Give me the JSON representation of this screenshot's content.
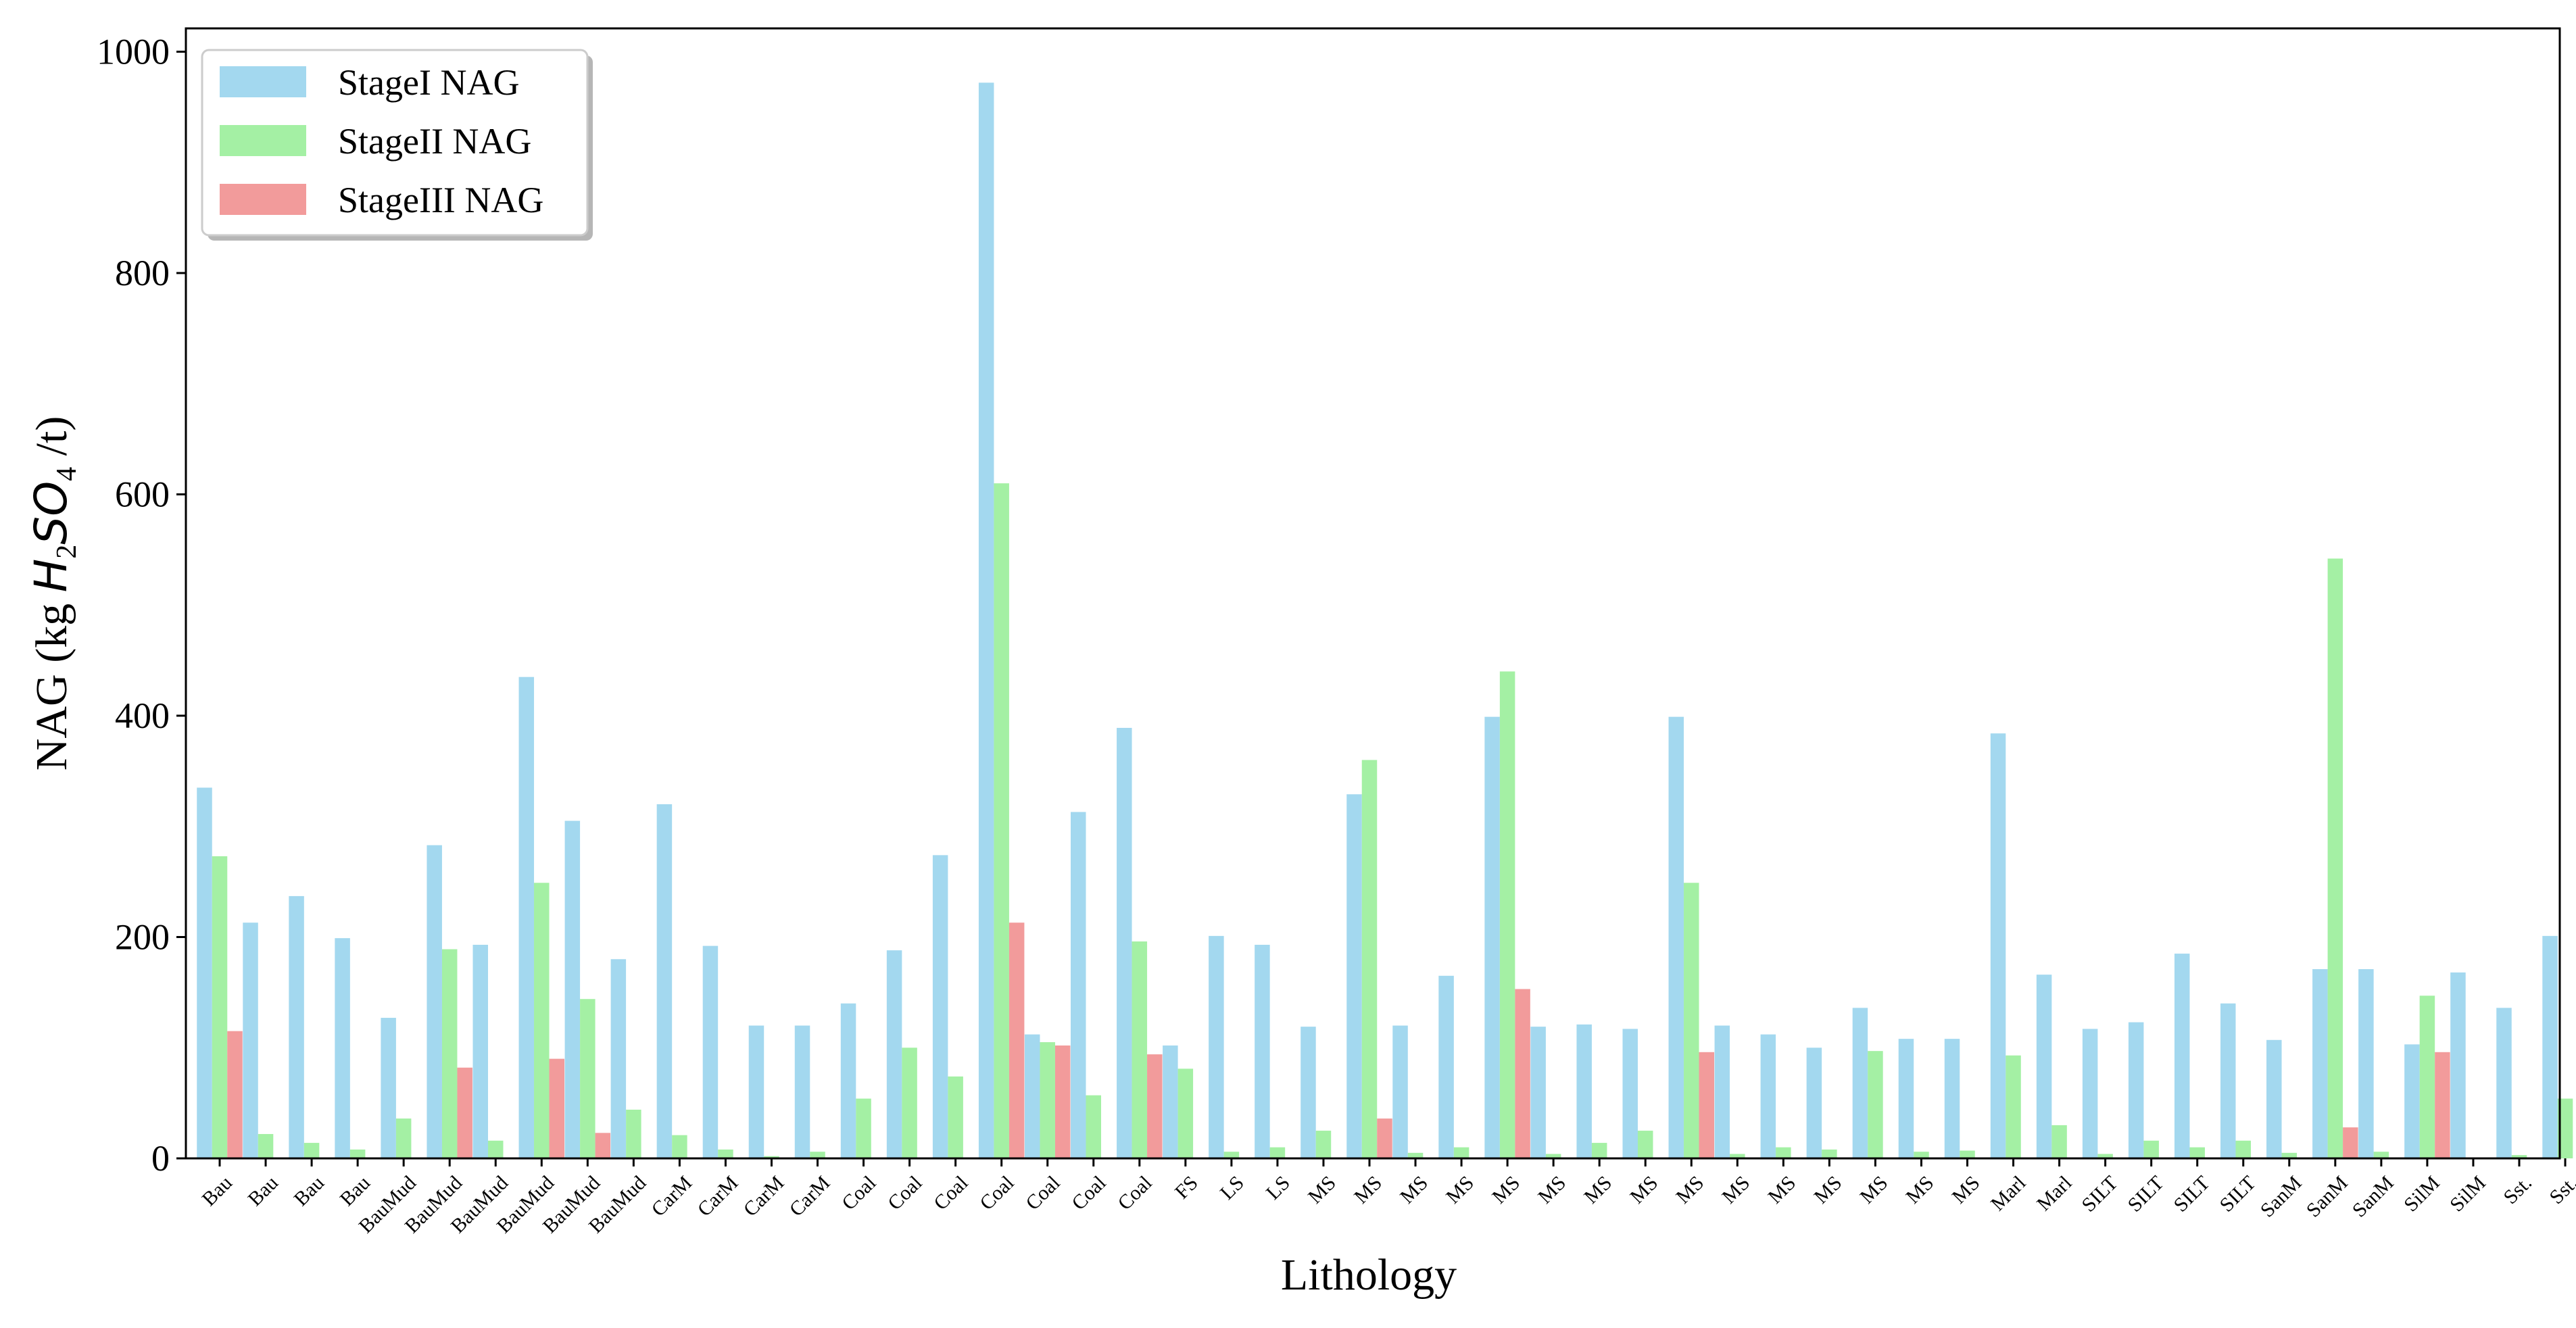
{
  "chart_data": {
    "type": "bar",
    "title": "",
    "xlabel": "Lithology",
    "ylabel": "NAG (kg H₂SO₄ /t)",
    "ylabel_parts": {
      "prefix": "NAG (kg ",
      "h": "H",
      "sub2": "2",
      "so": "SO",
      "sub4": "4",
      "suffix": " /t)"
    },
    "ylim": [
      0,
      1020
    ],
    "yticks": [
      0,
      200,
      400,
      600,
      800,
      1000
    ],
    "grid": false,
    "legend_position": "top-left",
    "categories": [
      "Bau",
      "Bau",
      "Bau",
      "Bau",
      "BauMud",
      "BauMud",
      "BauMud",
      "BauMud",
      "BauMud",
      "BauMud",
      "CarM",
      "CarM",
      "CarM",
      "CarM",
      "Coal",
      "Coal",
      "Coal",
      "Coal",
      "Coal",
      "Coal",
      "Coal",
      "FS",
      "LS",
      "LS",
      "MS",
      "MS",
      "MS",
      "MS",
      "MS",
      "MS",
      "MS",
      "MS",
      "MS",
      "MS",
      "MS",
      "MS",
      "MS",
      "MS",
      "MS",
      "Marl",
      "Marl",
      "SILT",
      "SILT",
      "SILT",
      "SILT",
      "SanM",
      "SanM",
      "SanM",
      "SilM",
      "SilM",
      "Sst.",
      "Sst."
    ],
    "series": [
      {
        "name": "StageI NAG",
        "color": "#a3d8ef",
        "values": [
          335,
          213,
          237,
          199,
          127,
          283,
          193,
          435,
          305,
          180,
          320,
          192,
          120,
          120,
          140,
          188,
          274,
          972,
          112,
          313,
          389,
          102,
          201,
          193,
          119,
          329,
          120,
          165,
          399,
          119,
          121,
          117,
          399,
          120,
          112,
          100,
          136,
          108,
          108,
          384,
          166,
          117,
          123,
          185,
          140,
          107,
          171,
          171,
          103,
          168,
          136,
          201
        ]
      },
      {
        "name": "StageII NAG",
        "color": "#a4f0a4",
        "values": [
          273,
          22,
          14,
          8,
          36,
          189,
          16,
          249,
          144,
          44,
          21,
          8,
          2,
          6,
          54,
          100,
          74,
          610,
          105,
          57,
          196,
          81,
          6,
          10,
          25,
          360,
          5,
          10,
          440,
          4,
          14,
          25,
          249,
          4,
          10,
          8,
          97,
          6,
          7,
          93,
          30,
          4,
          16,
          10,
          16,
          5,
          542,
          6,
          147,
          0,
          3,
          54
        ]
      },
      {
        "name": "StageIII NAG",
        "color": "#f29b9b",
        "values": [
          115,
          0,
          0,
          0,
          0,
          82,
          0,
          90,
          23,
          0,
          0,
          0,
          0,
          0,
          0,
          0,
          0,
          213,
          102,
          0,
          94,
          0,
          0,
          0,
          0,
          36,
          0,
          0,
          153,
          0,
          0,
          0,
          96,
          0,
          0,
          0,
          0,
          0,
          0,
          0,
          0,
          0,
          0,
          0,
          0,
          0,
          28,
          0,
          96,
          0,
          0,
          0
        ]
      }
    ]
  }
}
